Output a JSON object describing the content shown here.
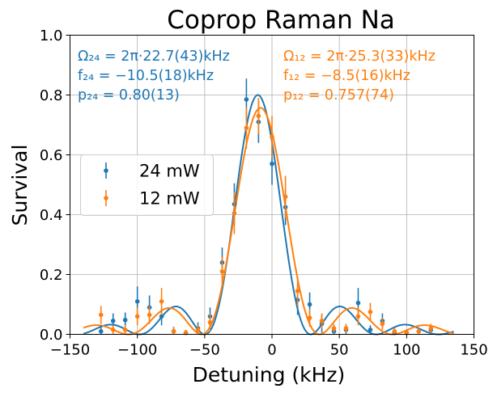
{
  "chart_data": {
    "type": "scatter",
    "title": "Coprop Raman Na",
    "xlabel": "Detuning (kHz)",
    "ylabel": "Survival",
    "xlim": [
      -150,
      150
    ],
    "ylim": [
      0,
      1
    ],
    "xticks": [
      -150,
      -100,
      -50,
      0,
      50,
      100,
      150
    ],
    "yticks": [
      0.0,
      0.2,
      0.4,
      0.6,
      0.8,
      1.0
    ],
    "xtick_labels": [
      "−150",
      "−100",
      "−50",
      "0",
      "50",
      "100",
      "150"
    ],
    "ytick_labels": [
      "0.0",
      "0.2",
      "0.4",
      "0.6",
      "0.8",
      "1.0"
    ],
    "grid": true,
    "legend_position": "center-left",
    "series": [
      {
        "name": "24 mW",
        "color": "#1f77b4",
        "fit": {
          "omega_khz": 22.7,
          "detuning_khz": -10.5,
          "amplitude": 0.8
        },
        "points": [
          {
            "x": -127,
            "y": 0.01,
            "err": 0.02
          },
          {
            "x": -118,
            "y": 0.045,
            "err": 0.025
          },
          {
            "x": -109,
            "y": 0.048,
            "err": 0.025
          },
          {
            "x": -100,
            "y": 0.11,
            "err": 0.05
          },
          {
            "x": -91,
            "y": 0.09,
            "err": 0.04
          },
          {
            "x": -82,
            "y": 0.06,
            "err": 0.03
          },
          {
            "x": -73,
            "y": 0.01,
            "err": 0.015
          },
          {
            "x": -64,
            "y": 0.005,
            "err": 0.01
          },
          {
            "x": -55,
            "y": 0.02,
            "err": 0.02
          },
          {
            "x": -46,
            "y": 0.06,
            "err": 0.03
          },
          {
            "x": -37,
            "y": 0.24,
            "err": 0.05
          },
          {
            "x": -28,
            "y": 0.435,
            "err": 0.07
          },
          {
            "x": -19,
            "y": 0.785,
            "err": 0.07
          },
          {
            "x": -10,
            "y": 0.71,
            "err": 0.07
          },
          {
            "x": 0,
            "y": 0.57,
            "err": 0.07
          },
          {
            "x": 10,
            "y": 0.425,
            "err": 0.06
          },
          {
            "x": 19,
            "y": 0.115,
            "err": 0.05
          },
          {
            "x": 28,
            "y": 0.1,
            "err": 0.04
          },
          {
            "x": 37,
            "y": 0.035,
            "err": 0.03
          },
          {
            "x": 46,
            "y": 0.01,
            "err": 0.015
          },
          {
            "x": 55,
            "y": 0.015,
            "err": 0.015
          },
          {
            "x": 64,
            "y": 0.105,
            "err": 0.05
          },
          {
            "x": 73,
            "y": 0.015,
            "err": 0.015
          },
          {
            "x": 82,
            "y": 0.045,
            "err": 0.025
          },
          {
            "x": 91,
            "y": 0.005,
            "err": 0.01
          },
          {
            "x": 100,
            "y": 0.005,
            "err": 0.01
          },
          {
            "x": 109,
            "y": 0.01,
            "err": 0.01
          },
          {
            "x": 118,
            "y": 0.015,
            "err": 0.015
          }
        ],
        "annotation": [
          "Ω₂₄ = 2π·22.7(43)kHz",
          "f₂₄ = −10.5(18)kHz",
          "p₂₄ = 0.80(13)"
        ]
      },
      {
        "name": "12 mW",
        "color": "#ff7f0e",
        "fit": {
          "omega_khz": 25.3,
          "detuning_khz": -8.5,
          "amplitude": 0.757
        },
        "points": [
          {
            "x": -127,
            "y": 0.065,
            "err": 0.03
          },
          {
            "x": -118,
            "y": 0.015,
            "err": 0.015
          },
          {
            "x": -109,
            "y": 0.015,
            "err": 0.015
          },
          {
            "x": -100,
            "y": 0.06,
            "err": 0.03
          },
          {
            "x": -91,
            "y": 0.065,
            "err": 0.03
          },
          {
            "x": -82,
            "y": 0.11,
            "err": 0.045
          },
          {
            "x": -73,
            "y": 0.01,
            "err": 0.015
          },
          {
            "x": -64,
            "y": 0.005,
            "err": 0.01
          },
          {
            "x": -55,
            "y": 0.015,
            "err": 0.015
          },
          {
            "x": -46,
            "y": 0.04,
            "err": 0.03
          },
          {
            "x": -37,
            "y": 0.21,
            "err": 0.05
          },
          {
            "x": -28,
            "y": 0.405,
            "err": 0.07
          },
          {
            "x": -19,
            "y": 0.69,
            "err": 0.07
          },
          {
            "x": -10,
            "y": 0.73,
            "err": 0.06
          },
          {
            "x": 0,
            "y": 0.66,
            "err": 0.07
          },
          {
            "x": 10,
            "y": 0.46,
            "err": 0.07
          },
          {
            "x": 19,
            "y": 0.145,
            "err": 0.05
          },
          {
            "x": 28,
            "y": 0.055,
            "err": 0.03
          },
          {
            "x": 37,
            "y": 0.045,
            "err": 0.025
          },
          {
            "x": 46,
            "y": 0.02,
            "err": 0.015
          },
          {
            "x": 55,
            "y": 0.02,
            "err": 0.015
          },
          {
            "x": 64,
            "y": 0.06,
            "err": 0.03
          },
          {
            "x": 73,
            "y": 0.075,
            "err": 0.03
          },
          {
            "x": 82,
            "y": 0.035,
            "err": 0.02
          },
          {
            "x": 91,
            "y": 0.01,
            "err": 0.01
          },
          {
            "x": 100,
            "y": 0.005,
            "err": 0.01
          },
          {
            "x": 109,
            "y": 0.01,
            "err": 0.01
          },
          {
            "x": 118,
            "y": 0.02,
            "err": 0.015
          }
        ],
        "annotation": [
          "Ω₁₂ = 2π·25.3(33)kHz",
          "f₁₂ = −8.5(16)kHz",
          "p₁₂ = 0.757(74)"
        ]
      }
    ]
  }
}
